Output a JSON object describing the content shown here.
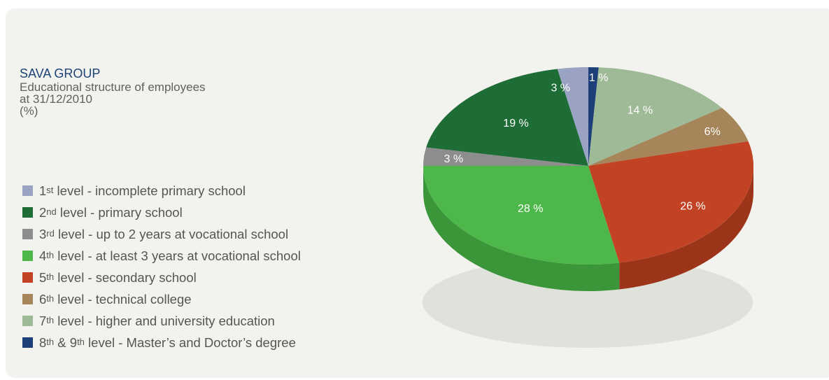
{
  "header": {
    "title": "SAVA GROUP",
    "subtitle_lines": [
      "Educational structure of employees",
      "at 31/12/2010",
      "(%)"
    ]
  },
  "chart_data": {
    "type": "pie",
    "title": "SAVA GROUP",
    "subtitle": "Educational structure of employees at 31/12/2010 (%)",
    "unit": "%",
    "legend_position": "left",
    "slices": [
      {
        "key": "l1",
        "num": "1",
        "sup": "st",
        "mid": "",
        "sup2": "",
        "rest": " level - incomplete primary school",
        "value": 3,
        "label": "3 %",
        "color": "#9ba3c4",
        "side": "#7d84a3"
      },
      {
        "key": "l2",
        "num": "2",
        "sup": "nd",
        "mid": "",
        "sup2": "",
        "rest": " level - primary school",
        "value": 19,
        "label": "19 %",
        "color": "#1e6d37",
        "side": "#16552a"
      },
      {
        "key": "l3",
        "num": "3",
        "sup": "rd",
        "mid": "",
        "sup2": "",
        "rest": " level - up to 2 years at vocational school",
        "value": 3,
        "label": "3 %",
        "color": "#8d8d8d",
        "side": "#6f6f6f"
      },
      {
        "key": "l4",
        "num": "4",
        "sup": "th",
        "mid": "",
        "sup2": "",
        "rest": " level - at least 3 years at vocational school",
        "value": 28,
        "label": "28 %",
        "color": "#4db849",
        "side": "#3a9639"
      },
      {
        "key": "l5",
        "num": "5",
        "sup": "th",
        "mid": "",
        "sup2": "",
        "rest": " level - secondary school",
        "value": 26,
        "label": "26 %",
        "color": "#c14324",
        "side": "#9c341a"
      },
      {
        "key": "l6",
        "num": "6",
        "sup": "th",
        "mid": "",
        "sup2": "",
        "rest": " level - technical college",
        "value": 6,
        "label": "6%",
        "color": "#a58559",
        "side": "#856a45"
      },
      {
        "key": "l7",
        "num": "7",
        "sup": "th",
        "mid": "",
        "sup2": "",
        "rest": " level - higher and university education",
        "value": 14,
        "label": "14 %",
        "color": "#9fba97",
        "side": "#829b7b"
      },
      {
        "key": "l8",
        "num": "8",
        "sup": "th",
        "mid": " & 9",
        "sup2": "th",
        "rest": " level - Master’s and Doctor’s degree",
        "value": 1,
        "label": "1 %",
        "color": "#1d3f7a",
        "side": "#142e5b"
      }
    ]
  }
}
